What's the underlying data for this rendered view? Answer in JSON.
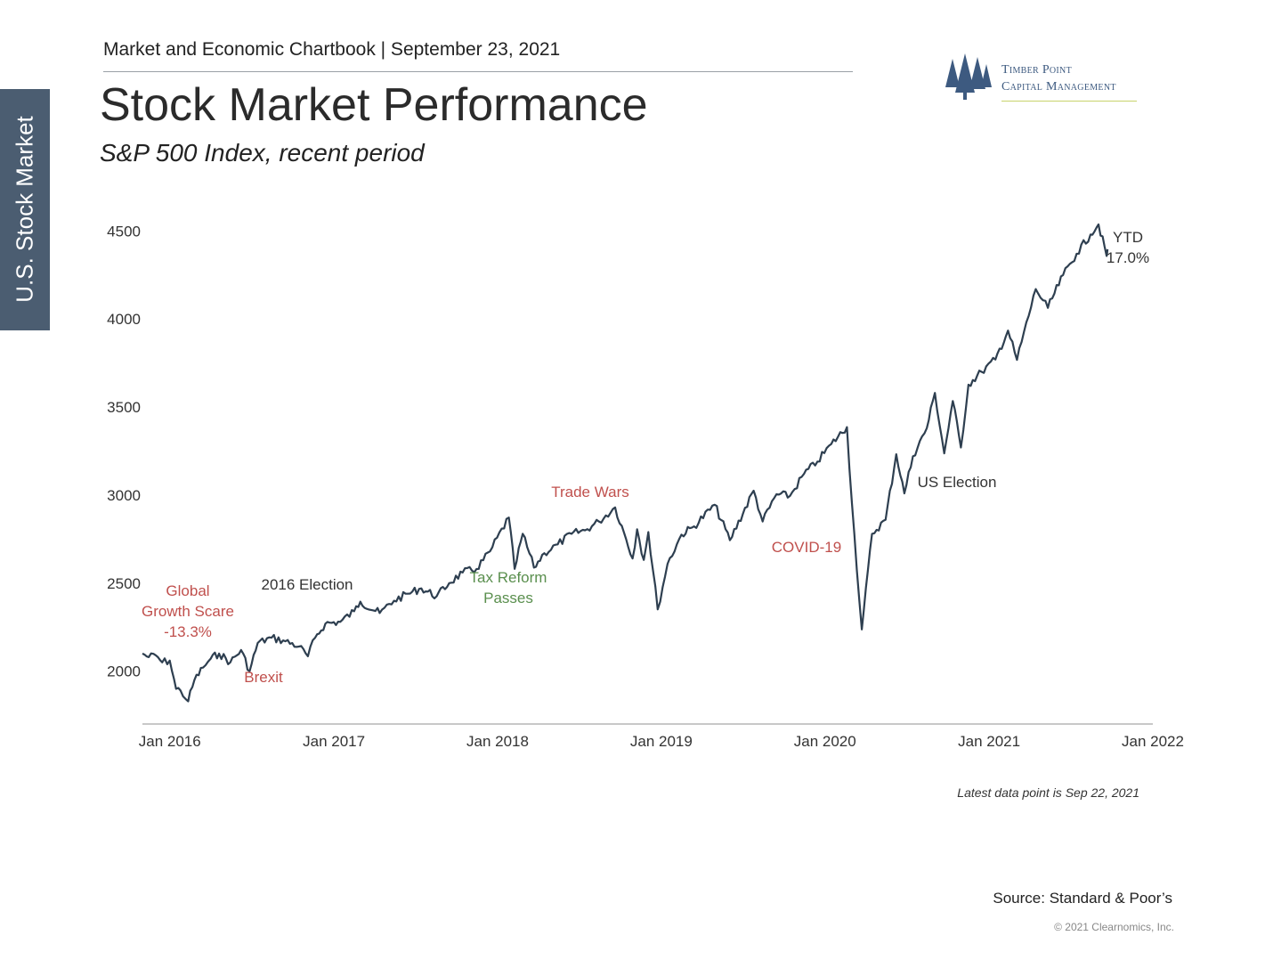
{
  "sidebar": {
    "label": "U.S. Stock Market"
  },
  "header": {
    "text": "Market and Economic Chartbook | September 23, 2021"
  },
  "title": "Stock Market Performance",
  "subtitle": "S&P 500 Index, recent period",
  "logo": {
    "line1": "Timber Point",
    "line2": "Capital Management",
    "icon": "pine-trees-icon",
    "color": "#3d5a80"
  },
  "footnote": "Latest data point is Sep 22, 2021",
  "source": "Source: Standard & Poor’s",
  "copyright": "© 2021 Clearnomics, Inc.",
  "colors": {
    "line": "#2e3f50",
    "red": "#c0504d",
    "green": "#5a8f4e",
    "dark": "#333333"
  },
  "chart_data": {
    "type": "line",
    "title": "Stock Market Performance",
    "subtitle": "S&P 500 Index, recent period",
    "xlabel": "",
    "ylabel": "",
    "grid": false,
    "xlim": [
      "2015-11-01",
      "2022-01-01"
    ],
    "ylim": [
      1700,
      4800
    ],
    "y_ticks": [
      2000,
      2500,
      3000,
      3500,
      4000,
      4500
    ],
    "x_ticks": [
      {
        "date": "2016-01-01",
        "label": "Jan 2016"
      },
      {
        "date": "2017-01-01",
        "label": "Jan 2017"
      },
      {
        "date": "2018-01-01",
        "label": "Jan 2018"
      },
      {
        "date": "2019-01-01",
        "label": "Jan 2019"
      },
      {
        "date": "2020-01-01",
        "label": "Jan 2020"
      },
      {
        "date": "2021-01-01",
        "label": "Jan 2021"
      },
      {
        "date": "2022-01-01",
        "label": "Jan 2022"
      }
    ],
    "series": [
      {
        "points": [
          [
            "2015-11-01",
            2100
          ],
          [
            "2015-11-15",
            2080
          ],
          [
            "2015-12-01",
            2090
          ],
          [
            "2015-12-15",
            2050
          ],
          [
            "2016-01-01",
            2060
          ],
          [
            "2016-01-15",
            1900
          ],
          [
            "2016-01-25",
            1890
          ],
          [
            "2016-02-11",
            1829
          ],
          [
            "2016-02-25",
            1950
          ],
          [
            "2016-03-15",
            2020
          ],
          [
            "2016-04-01",
            2070
          ],
          [
            "2016-04-20",
            2100
          ],
          [
            "2016-05-15",
            2050
          ],
          [
            "2016-06-08",
            2120
          ],
          [
            "2016-06-27",
            2000
          ],
          [
            "2016-07-15",
            2160
          ],
          [
            "2016-08-15",
            2190
          ],
          [
            "2016-09-15",
            2170
          ],
          [
            "2016-10-15",
            2140
          ],
          [
            "2016-11-04",
            2085
          ],
          [
            "2016-11-20",
            2190
          ],
          [
            "2016-12-13",
            2270
          ],
          [
            "2017-01-15",
            2280
          ],
          [
            "2017-02-15",
            2340
          ],
          [
            "2017-03-01",
            2395
          ],
          [
            "2017-04-13",
            2330
          ],
          [
            "2017-05-15",
            2400
          ],
          [
            "2017-06-15",
            2440
          ],
          [
            "2017-07-15",
            2470
          ],
          [
            "2017-08-18",
            2425
          ],
          [
            "2017-09-15",
            2500
          ],
          [
            "2017-10-15",
            2560
          ],
          [
            "2017-11-15",
            2580
          ],
          [
            "2017-12-15",
            2680
          ],
          [
            "2018-01-26",
            2872
          ],
          [
            "2018-02-08",
            2581
          ],
          [
            "2018-02-26",
            2780
          ],
          [
            "2018-03-23",
            2588
          ],
          [
            "2018-04-15",
            2670
          ],
          [
            "2018-05-15",
            2720
          ],
          [
            "2018-06-15",
            2780
          ],
          [
            "2018-07-15",
            2800
          ],
          [
            "2018-08-15",
            2850
          ],
          [
            "2018-09-20",
            2930
          ],
          [
            "2018-10-10",
            2785
          ],
          [
            "2018-10-29",
            2640
          ],
          [
            "2018-11-08",
            2806
          ],
          [
            "2018-11-23",
            2632
          ],
          [
            "2018-12-03",
            2790
          ],
          [
            "2018-12-24",
            2351
          ],
          [
            "2019-01-15",
            2610
          ],
          [
            "2019-02-15",
            2775
          ],
          [
            "2019-03-15",
            2822
          ],
          [
            "2019-04-30",
            2945
          ],
          [
            "2019-06-03",
            2744
          ],
          [
            "2019-07-26",
            3025
          ],
          [
            "2019-08-15",
            2850
          ],
          [
            "2019-09-15",
            3005
          ],
          [
            "2019-10-15",
            2995
          ],
          [
            "2019-11-15",
            3120
          ],
          [
            "2019-12-15",
            3190
          ],
          [
            "2020-01-15",
            3290
          ],
          [
            "2020-02-19",
            3386
          ],
          [
            "2020-03-01",
            2954
          ],
          [
            "2020-03-23",
            2237
          ],
          [
            "2020-04-15",
            2780
          ],
          [
            "2020-05-15",
            2860
          ],
          [
            "2020-06-08",
            3232
          ],
          [
            "2020-06-26",
            3010
          ],
          [
            "2020-07-15",
            3220
          ],
          [
            "2020-08-15",
            3380
          ],
          [
            "2020-09-02",
            3580
          ],
          [
            "2020-09-23",
            3237
          ],
          [
            "2020-10-12",
            3534
          ],
          [
            "2020-10-30",
            3270
          ],
          [
            "2020-11-16",
            3627
          ],
          [
            "2020-12-15",
            3700
          ],
          [
            "2021-01-15",
            3770
          ],
          [
            "2021-02-12",
            3934
          ],
          [
            "2021-03-04",
            3768
          ],
          [
            "2021-04-15",
            4170
          ],
          [
            "2021-05-12",
            4063
          ],
          [
            "2021-06-15",
            4250
          ],
          [
            "2021-07-15",
            4370
          ],
          [
            "2021-08-15",
            4480
          ],
          [
            "2021-09-02",
            4537
          ],
          [
            "2021-09-20",
            4358
          ],
          [
            "2021-09-22",
            4396
          ]
        ]
      }
    ],
    "annotations": [
      {
        "lines": [
          "Global",
          "Growth Scare",
          "-13.3%"
        ],
        "color": "red"
      },
      {
        "lines": [
          "Brexit"
        ],
        "color": "red"
      },
      {
        "lines": [
          "2016 Election"
        ],
        "color": "dark"
      },
      {
        "lines": [
          "Tax Reform",
          "Passes"
        ],
        "color": "green"
      },
      {
        "lines": [
          "Trade Wars"
        ],
        "color": "red"
      },
      {
        "lines": [
          "COVID-19"
        ],
        "color": "red"
      },
      {
        "lines": [
          "US Election"
        ],
        "color": "dark"
      },
      {
        "lines": [
          "YTD",
          "17.0%"
        ],
        "color": "dark"
      }
    ]
  }
}
